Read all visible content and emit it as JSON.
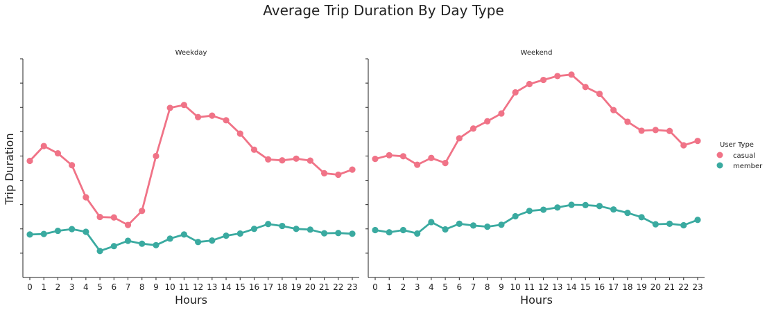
{
  "title": "Average Trip Duration By Day Type",
  "legend": {
    "title": "User Type",
    "items": [
      {
        "label": "casual",
        "color": "#f07387"
      },
      {
        "label": "member",
        "color": "#3aaaa0"
      }
    ]
  },
  "chart_data": {
    "type": "line",
    "ylabel": "Trip Duration",
    "xlabel": "Hours",
    "ylim": [
      0,
      9
    ],
    "legend_position": "right",
    "grid": false,
    "y_tick_labels_shown": false,
    "categories": [
      "0",
      "1",
      "2",
      "3",
      "4",
      "5",
      "6",
      "7",
      "8",
      "9",
      "10",
      "11",
      "12",
      "13",
      "14",
      "15",
      "16",
      "17",
      "18",
      "19",
      "20",
      "21",
      "22",
      "23"
    ],
    "facets": [
      {
        "title": "Weekday",
        "series": [
          {
            "name": "casual",
            "color": "#f07387",
            "values": [
              4.8,
              5.41,
              5.11,
              4.62,
              3.3,
              2.49,
              2.47,
              2.16,
              2.74,
              5.0,
              6.98,
              7.1,
              6.6,
              6.66,
              6.47,
              5.92,
              5.26,
              4.86,
              4.82,
              4.89,
              4.81,
              4.29,
              4.23,
              4.44
            ]
          },
          {
            "name": "member",
            "color": "#3aaaa0",
            "values": [
              1.77,
              1.79,
              1.92,
              1.99,
              1.88,
              1.09,
              1.29,
              1.51,
              1.39,
              1.33,
              1.6,
              1.77,
              1.46,
              1.52,
              1.72,
              1.81,
              2.0,
              2.2,
              2.12,
              2.0,
              1.97,
              1.82,
              1.83,
              1.8
            ]
          }
        ]
      },
      {
        "title": "Weekend",
        "series": [
          {
            "name": "casual",
            "color": "#f07387",
            "values": [
              4.88,
              5.03,
              4.99,
              4.64,
              4.92,
              4.71,
              5.73,
              6.13,
              6.43,
              6.75,
              7.62,
              7.96,
              8.13,
              8.29,
              8.35,
              7.84,
              7.56,
              6.89,
              6.41,
              6.04,
              6.07,
              6.03,
              5.44,
              5.62
            ]
          },
          {
            "name": "member",
            "color": "#3aaaa0",
            "values": [
              1.95,
              1.86,
              1.95,
              1.81,
              2.28,
              1.98,
              2.21,
              2.14,
              2.09,
              2.17,
              2.52,
              2.74,
              2.79,
              2.88,
              2.99,
              2.98,
              2.94,
              2.8,
              2.66,
              2.48,
              2.19,
              2.21,
              2.15,
              2.37
            ]
          }
        ]
      }
    ]
  }
}
